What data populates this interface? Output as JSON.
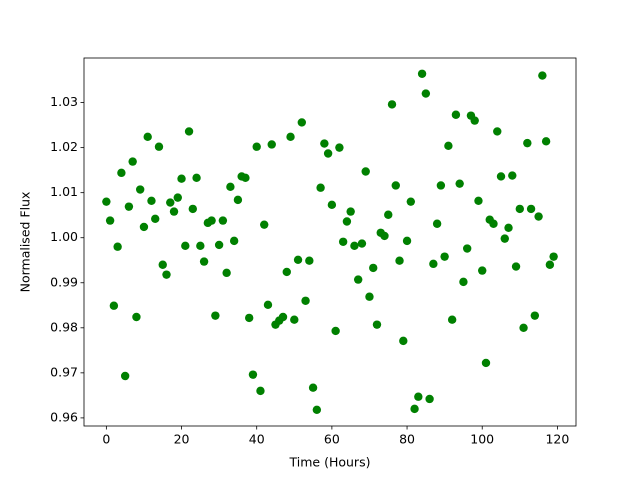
{
  "chart_data": {
    "type": "scatter",
    "xlabel": "Time (Hours)",
    "ylabel": "Normalised Flux",
    "series": [
      {
        "color": "#008000",
        "x": [
          0,
          1,
          2,
          3,
          4,
          5,
          6,
          7,
          8,
          9,
          10,
          11,
          12,
          13,
          14,
          15,
          16,
          17,
          18,
          19,
          20,
          21,
          22,
          23,
          24,
          25,
          26,
          27,
          28,
          29,
          30,
          31,
          32,
          33,
          34,
          35,
          36,
          37,
          38,
          39,
          40,
          41,
          42,
          43,
          44,
          45,
          46,
          47,
          48,
          49,
          50,
          51,
          52,
          53,
          54,
          55,
          56,
          57,
          58,
          59,
          60,
          61,
          62,
          63,
          64,
          65,
          66,
          67,
          68,
          69,
          70,
          71,
          72,
          73,
          74,
          75,
          76,
          77,
          78,
          79,
          80,
          81,
          82,
          83,
          84,
          85,
          86,
          87,
          88,
          89,
          90,
          91,
          92,
          93,
          94,
          95,
          96,
          97,
          98,
          99,
          100,
          101,
          102,
          103,
          104,
          105,
          106,
          107,
          108,
          109,
          110,
          111,
          112,
          113,
          114,
          115,
          116,
          117,
          118,
          119
        ],
        "values": [
          1.008,
          1.0038,
          0.9849,
          0.998,
          1.0144,
          0.9693,
          1.0069,
          1.0169,
          0.9824,
          1.0107,
          1.0024,
          1.0224,
          1.0082,
          1.0042,
          1.0202,
          0.994,
          0.9918,
          1.0078,
          1.0058,
          1.0089,
          1.0131,
          0.9982,
          1.0236,
          1.0064,
          1.0133,
          0.9982,
          0.9947,
          1.0033,
          1.0038,
          0.9827,
          0.9984,
          1.0038,
          0.9922,
          1.0113,
          0.9993,
          1.0084,
          1.0136,
          1.0133,
          0.9822,
          0.9696,
          1.0202,
          0.966,
          1.0029,
          0.9851,
          1.0207,
          0.9807,
          0.9816,
          0.9824,
          0.9924,
          1.0224,
          0.9818,
          0.9951,
          1.0256,
          0.986,
          0.9949,
          0.9667,
          0.9618,
          1.0111,
          1.0209,
          1.0187,
          1.0073,
          0.9793,
          1.02,
          0.9991,
          1.0036,
          1.0058,
          0.9982,
          0.9907,
          0.9987,
          1.0147,
          0.9869,
          0.9933,
          0.9807,
          1.0011,
          1.0004,
          1.0051,
          1.0296,
          1.0116,
          0.9949,
          0.9771,
          0.9993,
          1.008,
          0.962,
          0.9647,
          1.0364,
          1.032,
          0.9642,
          0.9942,
          1.0031,
          1.0116,
          0.9958,
          1.0204,
          0.9818,
          1.0273,
          1.012,
          0.9902,
          0.9976,
          1.0271,
          1.026,
          1.0082,
          0.9927,
          0.9722,
          1.004,
          1.0031,
          1.0236,
          1.0136,
          0.9998,
          1.0022,
          1.0138,
          0.9936,
          1.0064,
          0.98,
          1.021,
          1.0064,
          0.9827,
          1.0047,
          1.036,
          1.0214,
          0.994,
          0.9958
        ]
      }
    ],
    "xlim": [
      -5.95,
      124.95
    ],
    "xticks": [
      0,
      20,
      40,
      60,
      80,
      100,
      120
    ],
    "ylim": [
      0.9582,
      1.0399
    ],
    "yticks": [
      0.96,
      0.97,
      0.98,
      0.99,
      {
        "value": 1,
        "label": "1.00"
      },
      1.01,
      1.02,
      1.03
    ],
    "grid": false
  }
}
